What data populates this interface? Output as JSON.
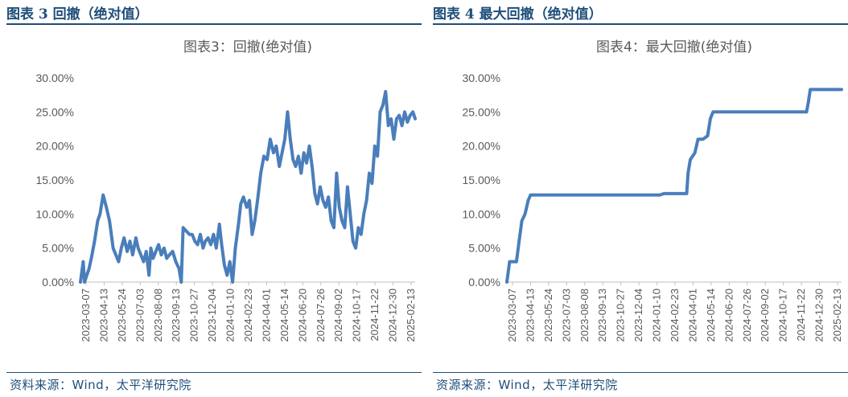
{
  "left_panel": {
    "figure_title": "图表 3 回撤（绝对值）",
    "source": "资料来源：Wind，太平洋研究院"
  },
  "right_panel": {
    "figure_title": "图表 4 最大回撤（绝对值）",
    "source": "资源来源：Wind，太平洋研究院"
  },
  "colors": {
    "line": "#4a7ebb",
    "heading": "#1f4e79",
    "axis": "#bfbfbf",
    "text": "#595959"
  },
  "chart_data": [
    {
      "type": "line",
      "title": "图表3：回撤(绝对值)",
      "ylim": [
        0,
        0.3
      ],
      "yticks": [
        0,
        0.05,
        0.1,
        0.15,
        0.2,
        0.25,
        0.3
      ],
      "ytick_labels": [
        "0.00%",
        "5.00%",
        "10.00%",
        "15.00%",
        "20.00%",
        "25.00%",
        "30.00%"
      ],
      "xtick_labels": [
        "2023-03-07",
        "2023-04-13",
        "2023-05-24",
        "2023-07-03",
        "2023-08-08",
        "2023-09-13",
        "2023-10-27",
        "2023-12-04",
        "2024-01-10",
        "2024-02-23",
        "2024-04-01",
        "2024-05-14",
        "2024-06-20",
        "2024-07-26",
        "2024-09-02",
        "2024-10-17",
        "2024-11-22",
        "2024-12-30",
        "2025-02-13"
      ],
      "xlim": [
        "2023-03-01",
        "2025-03-07"
      ],
      "grid": false,
      "legend": "none",
      "series": [
        {
          "x": [
            "2023-03-01",
            "2023-03-07",
            "2023-03-10",
            "2023-03-14",
            "2023-03-20",
            "2023-03-25",
            "2023-04-01",
            "2023-04-08",
            "2023-04-13",
            "2023-04-20",
            "2023-04-27",
            "2023-05-04",
            "2023-05-08",
            "2023-05-12",
            "2023-05-18",
            "2023-05-24",
            "2023-05-30",
            "2023-06-05",
            "2023-06-12",
            "2023-06-18",
            "2023-06-24",
            "2023-07-01",
            "2023-07-06",
            "2023-07-12",
            "2023-07-18",
            "2023-07-24",
            "2023-07-30",
            "2023-08-03",
            "2023-08-08",
            "2023-08-14",
            "2023-08-20",
            "2023-08-26",
            "2023-09-01",
            "2023-09-07",
            "2023-09-13",
            "2023-09-20",
            "2023-09-27",
            "2023-10-04",
            "2023-10-09",
            "2023-10-13",
            "2023-10-20",
            "2023-10-27",
            "2023-11-02",
            "2023-11-08",
            "2023-11-14",
            "2023-11-20",
            "2023-11-26",
            "2023-12-01",
            "2023-12-07",
            "2023-12-13",
            "2023-12-19",
            "2023-12-25",
            "2024-01-01",
            "2024-01-06",
            "2024-01-12",
            "2024-01-18",
            "2024-01-24",
            "2024-01-30",
            "2024-02-05",
            "2024-02-12",
            "2024-02-17",
            "2024-02-23",
            "2024-03-01",
            "2024-03-07",
            "2024-03-13",
            "2024-03-19",
            "2024-03-25",
            "2024-04-01",
            "2024-04-08",
            "2024-04-15",
            "2024-04-22",
            "2024-04-29",
            "2024-05-05",
            "2024-05-12",
            "2024-05-18",
            "2024-05-24",
            "2024-05-30",
            "2024-06-05",
            "2024-06-11",
            "2024-06-17",
            "2024-06-23",
            "2024-06-29",
            "2024-07-05",
            "2024-07-11",
            "2024-07-17",
            "2024-07-23",
            "2024-07-29",
            "2024-08-04",
            "2024-08-10",
            "2024-08-16",
            "2024-08-22",
            "2024-08-28",
            "2024-09-03",
            "2024-09-09",
            "2024-09-15",
            "2024-09-21",
            "2024-09-27",
            "2024-10-03",
            "2024-10-09",
            "2024-10-15",
            "2024-10-21",
            "2024-10-27",
            "2024-11-02",
            "2024-11-08",
            "2024-11-14",
            "2024-11-20",
            "2024-11-26",
            "2024-12-02",
            "2024-12-08",
            "2024-12-14",
            "2024-12-20",
            "2024-12-26",
            "2025-01-01",
            "2025-01-07",
            "2025-01-13",
            "2025-01-19",
            "2025-01-25",
            "2025-01-31",
            "2025-02-06",
            "2025-02-12",
            "2025-02-18",
            "2025-02-24",
            "2025-03-02",
            "2025-03-07"
          ],
          "y": [
            0.0,
            0.03,
            0.0,
            0.008,
            0.02,
            0.035,
            0.06,
            0.09,
            0.1,
            0.128,
            0.11,
            0.09,
            0.07,
            0.05,
            0.04,
            0.03,
            0.05,
            0.065,
            0.045,
            0.06,
            0.04,
            0.065,
            0.05,
            0.04,
            0.03,
            0.045,
            0.01,
            0.05,
            0.035,
            0.045,
            0.055,
            0.04,
            0.05,
            0.035,
            0.04,
            0.045,
            0.03,
            0.02,
            0.0,
            0.08,
            0.075,
            0.07,
            0.07,
            0.06,
            0.055,
            0.07,
            0.05,
            0.06,
            0.065,
            0.055,
            0.07,
            0.05,
            0.085,
            0.055,
            0.025,
            0.01,
            0.03,
            0.0,
            0.05,
            0.085,
            0.115,
            0.125,
            0.11,
            0.12,
            0.07,
            0.09,
            0.12,
            0.16,
            0.185,
            0.18,
            0.21,
            0.19,
            0.2,
            0.17,
            0.19,
            0.21,
            0.25,
            0.21,
            0.18,
            0.17,
            0.185,
            0.16,
            0.19,
            0.175,
            0.2,
            0.17,
            0.13,
            0.115,
            0.14,
            0.12,
            0.11,
            0.125,
            0.09,
            0.08,
            0.16,
            0.11,
            0.09,
            0.08,
            0.14,
            0.1,
            0.06,
            0.05,
            0.08,
            0.07,
            0.1,
            0.12,
            0.16,
            0.145,
            0.2,
            0.185,
            0.25,
            0.26,
            0.28,
            0.23,
            0.24,
            0.21,
            0.24,
            0.245,
            0.23,
            0.25,
            0.235,
            0.245,
            0.25,
            0.24
          ],
          "note_on_detail": ""
        }
      ]
    },
    {
      "type": "line",
      "title": "图表4：最大回撤(绝对值)",
      "ylim": [
        0,
        0.3
      ],
      "yticks": [
        0,
        0.05,
        0.1,
        0.15,
        0.2,
        0.25,
        0.3
      ],
      "ytick_labels": [
        "0.00%",
        "5.00%",
        "10.00%",
        "15.00%",
        "20.00%",
        "25.00%",
        "30.00%"
      ],
      "xtick_labels": [
        "2023-03-07",
        "2023-04-13",
        "2023-05-24",
        "2023-07-03",
        "2023-08-08",
        "2023-09-13",
        "2023-10-27",
        "2023-12-04",
        "2024-01-10",
        "2024-02-23",
        "2024-04-01",
        "2024-05-14",
        "2024-06-20",
        "2024-07-26",
        "2024-09-02",
        "2024-10-17",
        "2024-11-22",
        "2024-12-30",
        "2025-02-13"
      ],
      "xlim": [
        "2023-03-01",
        "2025-03-07"
      ],
      "grid": false,
      "legend": "none",
      "series": [
        {
          "x": [
            "2023-03-01",
            "2023-03-07",
            "2023-03-15",
            "2023-03-22",
            "2023-03-28",
            "2023-04-03",
            "2023-04-10",
            "2023-04-17",
            "2023-04-22",
            "2023-06-01",
            "2023-08-01",
            "2023-10-01",
            "2023-12-01",
            "2024-01-01",
            "2024-02-01",
            "2024-02-10",
            "2024-02-20",
            "2024-03-01",
            "2024-03-31",
            "2024-04-03",
            "2024-04-08",
            "2024-04-18",
            "2024-04-25",
            "2024-05-06",
            "2024-05-16",
            "2024-05-22",
            "2024-05-28",
            "2024-06-15",
            "2024-09-01",
            "2024-11-01",
            "2024-12-20",
            "2024-12-24",
            "2024-12-28",
            "2025-01-10",
            "2025-03-07"
          ],
          "y": [
            0.0,
            0.03,
            0.03,
            0.03,
            0.06,
            0.09,
            0.1,
            0.12,
            0.128,
            0.128,
            0.128,
            0.128,
            0.128,
            0.128,
            0.128,
            0.13,
            0.13,
            0.13,
            0.13,
            0.16,
            0.18,
            0.19,
            0.21,
            0.21,
            0.215,
            0.24,
            0.25,
            0.25,
            0.25,
            0.25,
            0.25,
            0.265,
            0.283,
            0.283,
            0.283
          ]
        }
      ]
    }
  ]
}
